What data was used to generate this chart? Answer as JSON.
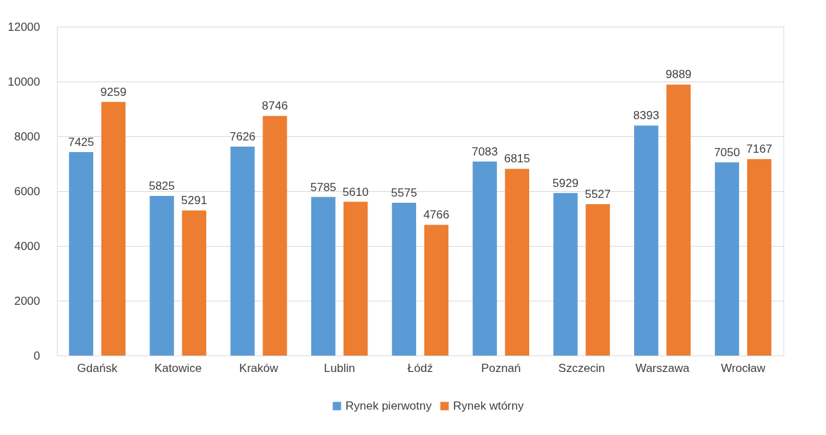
{
  "chart_data": {
    "type": "bar",
    "categories": [
      "Gdańsk",
      "Katowice",
      "Kraków",
      "Lublin",
      "Łódź",
      "Poznań",
      "Szczecin",
      "Warszawa",
      "Wrocław"
    ],
    "series": [
      {
        "name": "Rynek pierwotny",
        "color": "#5b9bd5",
        "values": [
          7425,
          5825,
          7626,
          5785,
          5575,
          7083,
          5929,
          8393,
          7050
        ]
      },
      {
        "name": "Rynek wtórny",
        "color": "#ed7d31",
        "values": [
          9259,
          5291,
          8746,
          5610,
          4766,
          6815,
          5527,
          9889,
          7167
        ]
      }
    ],
    "ylim": [
      0,
      12000
    ],
    "yticks": [
      0,
      2000,
      4000,
      6000,
      8000,
      10000,
      12000
    ],
    "grid": "y",
    "legend": "bottom",
    "data_labels": true
  }
}
